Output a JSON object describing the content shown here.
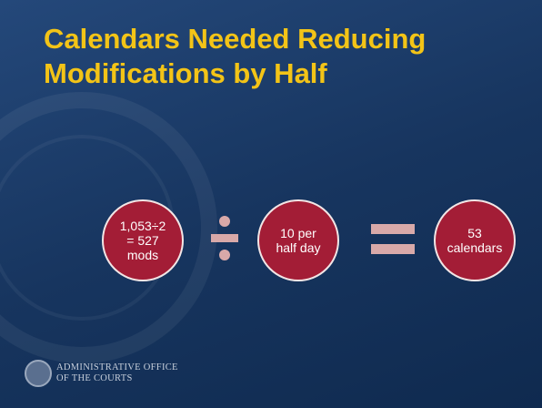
{
  "title": [
    "Calendars Needed Reducing",
    "Modifications by Half"
  ],
  "circles": [
    {
      "lines": [
        "1,053÷2",
        "= 527",
        "mods"
      ]
    },
    {
      "lines": [
        "10 per",
        "half day"
      ]
    },
    {
      "lines": [
        "53",
        "calendars"
      ]
    }
  ],
  "footer": [
    "ADMINISTRATIVE OFFICE",
    "OF THE COURTS"
  ]
}
